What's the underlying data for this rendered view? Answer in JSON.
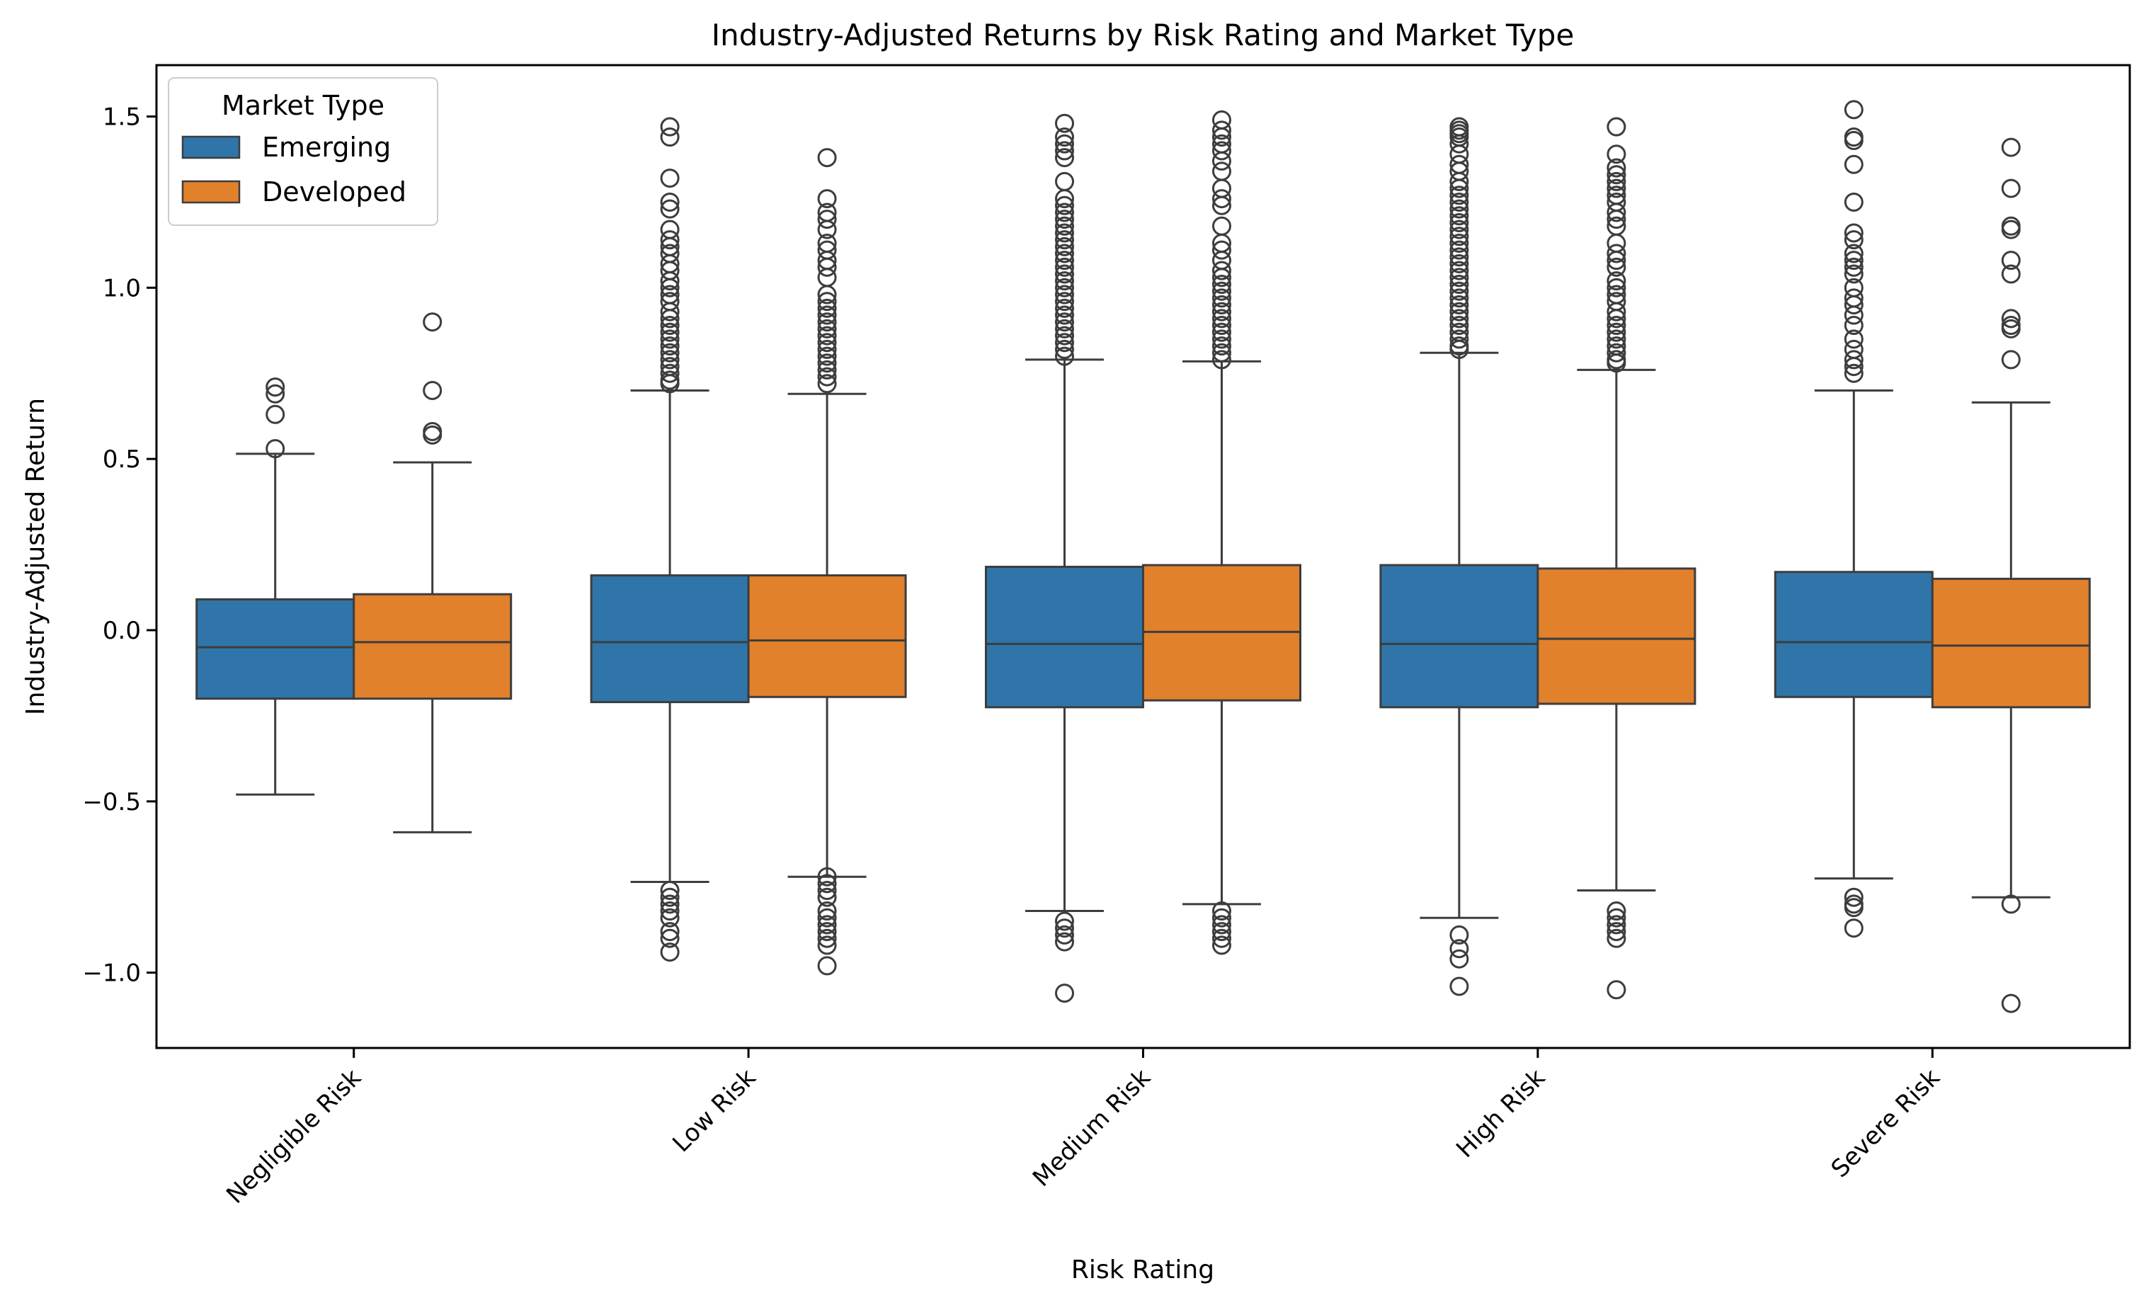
{
  "chart_data": {
    "type": "boxplot",
    "title": "Industry-Adjusted Returns by Risk Rating and Market Type",
    "xlabel": "Risk Rating",
    "ylabel": "Industry-Adjusted Return",
    "ylim": [
      -1.22,
      1.65
    ],
    "yticks": [
      -1.0,
      -0.5,
      0.0,
      0.5,
      1.0,
      1.5
    ],
    "ytick_labels": [
      "−1.0",
      "−0.5",
      "0.0",
      "0.5",
      "1.0",
      "1.5"
    ],
    "categories": [
      "Negligible Risk",
      "Low Risk",
      "Medium Risk",
      "High Risk",
      "Severe Risk"
    ],
    "grid": false,
    "legend": {
      "title": "Market Type",
      "placement": "top-left"
    },
    "series": [
      {
        "name": "Emerging",
        "color": "#2f75a9",
        "boxes": [
          {
            "whisker_low": -0.48,
            "q1": -0.2,
            "median": -0.05,
            "q3": 0.09,
            "whisker_high": 0.515,
            "outliers": [
              0.71,
              0.69,
              0.63,
              0.53
            ]
          },
          {
            "whisker_low": -0.735,
            "q1": -0.21,
            "median": -0.035,
            "q3": 0.16,
            "whisker_high": 0.7,
            "outliers": [
              1.47,
              1.44,
              1.32,
              1.25,
              1.23,
              1.17,
              1.14,
              1.12,
              1.1,
              1.07,
              1.05,
              1.02,
              1.0,
              0.98,
              0.96,
              0.93,
              0.91,
              0.89,
              0.87,
              0.85,
              0.83,
              0.81,
              0.79,
              0.77,
              0.75,
              0.73,
              0.72,
              -0.76,
              -0.78,
              -0.8,
              -0.82,
              -0.84,
              -0.88,
              -0.9,
              -0.94
            ]
          },
          {
            "whisker_low": -0.82,
            "q1": -0.225,
            "median": -0.04,
            "q3": 0.185,
            "whisker_high": 0.79,
            "outliers": [
              1.48,
              1.44,
              1.42,
              1.4,
              1.38,
              1.31,
              1.26,
              1.24,
              1.22,
              1.2,
              1.18,
              1.16,
              1.14,
              1.12,
              1.1,
              1.08,
              1.06,
              1.04,
              1.02,
              1.0,
              0.98,
              0.96,
              0.94,
              0.92,
              0.9,
              0.88,
              0.86,
              0.84,
              0.82,
              0.8,
              -0.85,
              -0.87,
              -0.89,
              -0.91,
              -1.06
            ]
          },
          {
            "whisker_low": -0.84,
            "q1": -0.225,
            "median": -0.04,
            "q3": 0.19,
            "whisker_high": 0.81,
            "outliers": [
              1.47,
              1.46,
              1.45,
              1.44,
              1.42,
              1.39,
              1.36,
              1.34,
              1.31,
              1.29,
              1.27,
              1.25,
              1.23,
              1.21,
              1.19,
              1.17,
              1.15,
              1.13,
              1.11,
              1.09,
              1.07,
              1.05,
              1.03,
              1.01,
              0.99,
              0.97,
              0.95,
              0.93,
              0.91,
              0.89,
              0.87,
              0.85,
              0.83,
              0.82,
              -0.89,
              -0.93,
              -0.96,
              -1.04
            ]
          },
          {
            "whisker_low": -0.725,
            "q1": -0.195,
            "median": -0.035,
            "q3": 0.17,
            "whisker_high": 0.7,
            "outliers": [
              1.52,
              1.44,
              1.43,
              1.36,
              1.25,
              1.16,
              1.14,
              1.1,
              1.08,
              1.06,
              1.04,
              1.0,
              0.97,
              0.95,
              0.92,
              0.89,
              0.85,
              0.82,
              0.79,
              0.77,
              0.75,
              -0.78,
              -0.8,
              -0.81,
              -0.87
            ]
          }
        ]
      },
      {
        "name": "Developed",
        "color": "#e1812c",
        "boxes": [
          {
            "whisker_low": -0.59,
            "q1": -0.2,
            "median": -0.035,
            "q3": 0.105,
            "whisker_high": 0.49,
            "outliers": [
              0.9,
              0.7,
              0.58,
              0.57
            ]
          },
          {
            "whisker_low": -0.72,
            "q1": -0.195,
            "median": -0.03,
            "q3": 0.16,
            "whisker_high": 0.69,
            "outliers": [
              1.38,
              1.26,
              1.22,
              1.2,
              1.17,
              1.13,
              1.11,
              1.08,
              1.06,
              1.03,
              0.98,
              0.96,
              0.94,
              0.92,
              0.9,
              0.88,
              0.86,
              0.84,
              0.82,
              0.8,
              0.78,
              0.76,
              0.74,
              0.72,
              -0.72,
              -0.74,
              -0.76,
              -0.78,
              -0.82,
              -0.84,
              -0.86,
              -0.88,
              -0.9,
              -0.92,
              -0.98
            ]
          },
          {
            "whisker_low": -0.8,
            "q1": -0.205,
            "median": -0.005,
            "q3": 0.19,
            "whisker_high": 0.785,
            "outliers": [
              1.49,
              1.46,
              1.44,
              1.42,
              1.4,
              1.37,
              1.34,
              1.29,
              1.26,
              1.24,
              1.18,
              1.13,
              1.11,
              1.08,
              1.05,
              1.03,
              1.01,
              0.99,
              0.97,
              0.95,
              0.93,
              0.91,
              0.89,
              0.87,
              0.85,
              0.83,
              0.81,
              0.79,
              -0.82,
              -0.84,
              -0.86,
              -0.88,
              -0.9,
              -0.92
            ]
          },
          {
            "whisker_low": -0.76,
            "q1": -0.215,
            "median": -0.025,
            "q3": 0.18,
            "whisker_high": 0.76,
            "outliers": [
              1.47,
              1.39,
              1.35,
              1.33,
              1.31,
              1.29,
              1.27,
              1.25,
              1.22,
              1.2,
              1.18,
              1.13,
              1.1,
              1.08,
              1.06,
              1.02,
              1.0,
              0.98,
              0.96,
              0.93,
              0.91,
              0.89,
              0.87,
              0.85,
              0.83,
              0.81,
              0.79,
              0.78,
              -0.82,
              -0.84,
              -0.86,
              -0.88,
              -0.9,
              -1.05
            ]
          },
          {
            "whisker_low": -0.78,
            "q1": -0.225,
            "median": -0.045,
            "q3": 0.15,
            "whisker_high": 0.665,
            "outliers": [
              1.41,
              1.29,
              1.18,
              1.17,
              1.08,
              1.04,
              0.91,
              0.89,
              0.88,
              0.79,
              -0.8,
              -1.09
            ]
          }
        ]
      }
    ]
  }
}
